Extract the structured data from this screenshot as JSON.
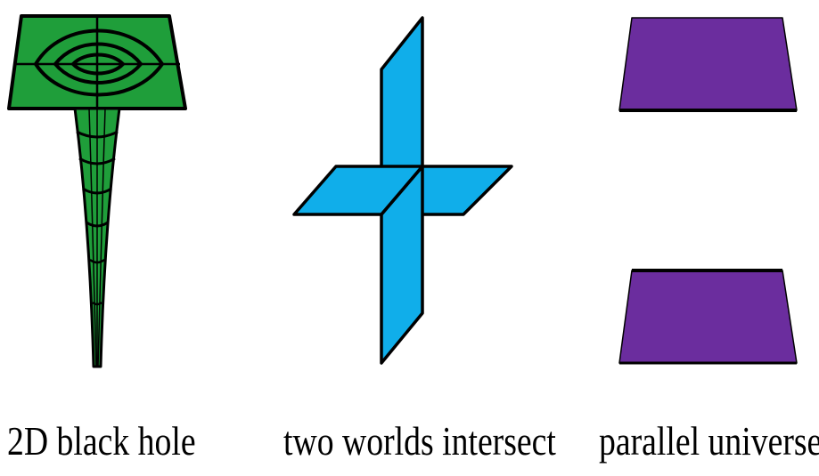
{
  "panels": [
    {
      "id": "black-hole",
      "caption": "2D black hole",
      "color": "#1f9e3a"
    },
    {
      "id": "intersect",
      "caption": "two worlds intersect",
      "color": "#10aeea"
    },
    {
      "id": "parallel",
      "caption": "parallel universes",
      "color": "#6b2d9e"
    }
  ],
  "stroke_color": "#000000"
}
